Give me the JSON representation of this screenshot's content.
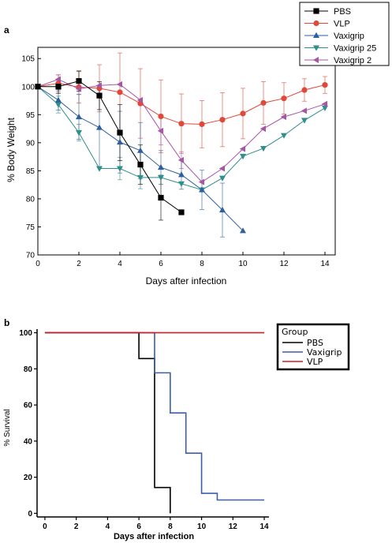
{
  "chart_data": [
    {
      "type": "line",
      "panel_label": "a",
      "title": "",
      "xlabel": "Days after infection",
      "ylabel": "% Body Weight",
      "xlim": [
        0,
        14.5
      ],
      "ylim": [
        70,
        107
      ],
      "xticks": [
        0,
        2,
        4,
        6,
        8,
        10,
        12,
        14
      ],
      "yticks": [
        70,
        75,
        80,
        85,
        90,
        95,
        100,
        105
      ],
      "grid": false,
      "legend_position": "top-right",
      "series": [
        {
          "name": "PBS",
          "color": "#000000",
          "marker": "square",
          "x": [
            0,
            1,
            2,
            3,
            4,
            5,
            6,
            7
          ],
          "y": [
            100,
            100,
            101,
            98.4,
            91.8,
            86.1,
            80.2,
            77.6
          ],
          "err": [
            0,
            1.2,
            1.8,
            2.5,
            5.0,
            3.5,
            4.0,
            0
          ]
        },
        {
          "name": "VLP",
          "color": "#e0483a",
          "marker": "circle",
          "x": [
            0,
            1,
            2,
            3,
            4,
            5,
            6,
            7,
            8,
            9,
            10,
            11,
            12,
            13,
            14
          ],
          "y": [
            100,
            100.6,
            99.9,
            99.7,
            99,
            97,
            94.7,
            93.4,
            93.3,
            94.1,
            95.2,
            97.1,
            97.9,
            99.4,
            100.3
          ],
          "err": [
            0,
            1.5,
            2.8,
            4.2,
            7.0,
            6.2,
            6.5,
            5.3,
            4.2,
            4.8,
            4.5,
            3.8,
            2.8,
            2.0,
            1.5
          ]
        },
        {
          "name": "Vaxigrip",
          "color": "#2e5f9e",
          "marker": "triangle-up",
          "x": [
            0,
            1,
            2,
            3,
            4,
            5,
            6,
            7,
            8,
            9,
            10
          ],
          "y": [
            100,
            97.6,
            94.6,
            92.7,
            90.1,
            88.6,
            85.6,
            84.3,
            81.6,
            78,
            74.3
          ],
          "err": [
            0,
            1.8,
            4.0,
            7.0,
            5.5,
            5.0,
            3.0,
            2.6,
            3.5,
            4.8,
            0
          ]
        },
        {
          "name": "Vaxigrip 25",
          "color": "#2f8f8a",
          "marker": "triangle-down",
          "x": [
            0,
            1,
            2,
            3,
            4,
            5,
            6,
            7,
            8,
            9,
            10,
            11,
            12,
            13,
            14
          ],
          "y": [
            100,
            96.8,
            91.8,
            85.4,
            85.4,
            83.8,
            83.8,
            82.7,
            81.6,
            83.7,
            87.6,
            89,
            91.3,
            94,
            96.2
          ],
          "err": [
            0,
            1.5,
            1.5,
            0,
            2.0,
            2.0,
            0,
            0,
            0,
            0,
            0,
            0,
            0,
            0,
            0
          ]
        },
        {
          "name": "Vaxigrip 2",
          "color": "#a855a6",
          "marker": "triangle-left",
          "x": [
            0,
            1,
            2,
            3,
            4,
            5,
            6,
            7,
            8,
            9,
            10,
            11,
            12,
            13,
            14
          ],
          "y": [
            100,
            101.3,
            99.6,
            100.2,
            100.4,
            97.6,
            92.1,
            86.9,
            83,
            85.4,
            88.9,
            92.5,
            94.6,
            95.7,
            96.9
          ],
          "err": [
            0,
            0.8,
            1.0,
            0,
            0,
            0,
            2.5,
            1.5,
            0,
            0,
            0,
            0,
            0,
            0,
            0
          ]
        }
      ]
    },
    {
      "type": "line",
      "step": true,
      "panel_label": "b",
      "title": "",
      "xlabel": "Days after infection",
      "ylabel": "% Survival",
      "xlim": [
        -0.5,
        14.3
      ],
      "ylim": [
        -2,
        102
      ],
      "xticks": [
        0,
        2,
        4,
        6,
        8,
        10,
        12,
        14
      ],
      "yticks": [
        0,
        20,
        40,
        60,
        80,
        100
      ],
      "grid": false,
      "legend_position": "right",
      "legend_title": "Group",
      "series": [
        {
          "name": "PBS",
          "color": "#000000",
          "x": [
            0,
            6,
            6,
            7,
            7,
            8,
            8
          ],
          "y": [
            100,
            100,
            85.7,
            85.7,
            14.3,
            14.3,
            0
          ]
        },
        {
          "name": "Vaxigrip",
          "color": "#3a5ea8",
          "x": [
            0,
            7,
            7,
            8,
            8,
            9,
            9,
            10,
            10,
            11,
            11,
            14
          ],
          "y": [
            100,
            100,
            77.8,
            77.8,
            55.6,
            55.6,
            33.3,
            33.3,
            11.1,
            11.1,
            7.4,
            7.4
          ]
        },
        {
          "name": "VLP",
          "color": "#d02020",
          "x": [
            0,
            14
          ],
          "y": [
            100,
            100
          ]
        }
      ]
    }
  ]
}
